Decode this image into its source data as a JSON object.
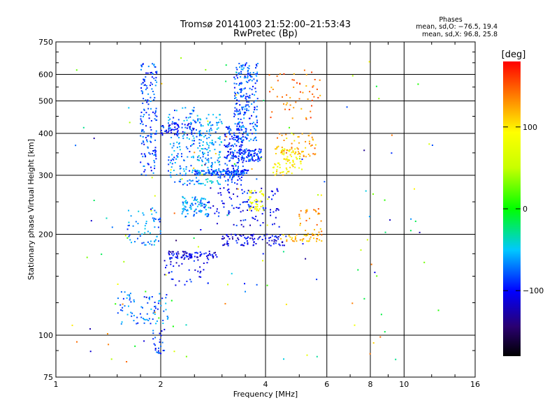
{
  "chart_data": {
    "type": "scatter",
    "title": "Tromsø 20141003 21:52:00–21:53:43",
    "subtitle": "RwPretec (Bp)",
    "xlabel": "Frequency [MHz]",
    "ylabel": "Stationary phase Virtual Height [km]",
    "x_scale": "log",
    "y_scale": "log",
    "xlim": [
      1,
      16
    ],
    "ylim": [
      75,
      750
    ],
    "x_ticks": [
      1,
      2,
      4,
      6,
      8,
      10,
      16
    ],
    "x_tick_labels": [
      "1",
      "2",
      "4",
      "6",
      "8",
      "10",
      "16"
    ],
    "y_ticks": [
      75,
      100,
      200,
      300,
      400,
      500,
      600,
      750
    ],
    "y_tick_labels": [
      "75",
      "100",
      "200",
      "300",
      "400",
      "500",
      "600",
      "750"
    ],
    "grid": true,
    "stats": {
      "heading": "Phases",
      "line_o": "mean, sd,O: −76.5, 19.4",
      "line_x": "mean, sd,X:  96.8, 25.8"
    },
    "colorbar": {
      "label": "[deg]",
      "range": [
        -180,
        180
      ],
      "ticks": [
        100,
        0,
        -100
      ],
      "tick_labels": [
        "100",
        "0",
        "−100"
      ]
    },
    "clusters": [
      {
        "f": [
          1.75,
          1.95
        ],
        "h": [
          300,
          650
        ],
        "phase": -85,
        "n": 160
      },
      {
        "f": [
          2.1,
          2.6
        ],
        "h": [
          280,
          480
        ],
        "phase": -70,
        "n": 150
      },
      {
        "f": [
          2.55,
          3.0
        ],
        "h": [
          280,
          460
        ],
        "phase": -60,
        "n": 150
      },
      {
        "f": [
          3.05,
          3.45
        ],
        "h": [
          280,
          420
        ],
        "phase": -90,
        "n": 150
      },
      {
        "f": [
          3.25,
          3.8
        ],
        "h": [
          380,
          650
        ],
        "phase": -80,
        "n": 230
      },
      {
        "f": [
          3.35,
          3.9
        ],
        "h": [
          330,
          360
        ],
        "phase": -88,
        "n": 90
      },
      {
        "f": [
          2.5,
          3.6
        ],
        "h": [
          300,
          312
        ],
        "phase": -80,
        "n": 120
      },
      {
        "f": [
          2.3,
          2.75
        ],
        "h": [
          225,
          260
        ],
        "phase": -62,
        "n": 90
      },
      {
        "f": [
          2.75,
          4.4
        ],
        "h": [
          210,
          275
        ],
        "phase": -100,
        "n": 110
      },
      {
        "f": [
          3.6,
          3.95
        ],
        "h": [
          235,
          270
        ],
        "phase": 85,
        "n": 45
      },
      {
        "f": [
          4.2,
          5.1
        ],
        "h": [
          300,
          360
        ],
        "phase": 95,
        "n": 80
      },
      {
        "f": [
          4.3,
          5.6
        ],
        "h": [
          340,
          400
        ],
        "phase": 125,
        "n": 55
      },
      {
        "f": [
          4.1,
          5.8
        ],
        "h": [
          440,
          620
        ],
        "phase": 140,
        "n": 55
      },
      {
        "f": [
          3.0,
          4.6
        ],
        "h": [
          185,
          200
        ],
        "phase": -110,
        "n": 90
      },
      {
        "f": [
          2.1,
          2.9
        ],
        "h": [
          170,
          178
        ],
        "phase": -110,
        "n": 70
      },
      {
        "f": [
          1.6,
          2.0
        ],
        "h": [
          185,
          240
        ],
        "phase": -68,
        "n": 60
      },
      {
        "f": [
          1.5,
          2.1
        ],
        "h": [
          108,
          135
        ],
        "phase": -72,
        "n": 80
      },
      {
        "f": [
          1.9,
          2.05
        ],
        "h": [
          88,
          105
        ],
        "phase": -90,
        "n": 25
      },
      {
        "f": [
          4.4,
          5.8
        ],
        "h": [
          190,
          200
        ],
        "phase": 125,
        "n": 40
      },
      {
        "f": [
          5.0,
          5.8
        ],
        "h": [
          200,
          240
        ],
        "phase": 130,
        "n": 30
      },
      {
        "f": [
          2.05,
          2.75
        ],
        "h": [
          140,
          175
        ],
        "phase": -105,
        "n": 50
      },
      {
        "f": [
          2.0,
          2.5
        ],
        "h": [
          395,
          430
        ],
        "phase": -95,
        "n": 60
      },
      {
        "f": [
          1.1,
          13
        ],
        "h": [
          80,
          700
        ],
        "phase": 0,
        "n": 140,
        "random_phase": true
      }
    ]
  }
}
